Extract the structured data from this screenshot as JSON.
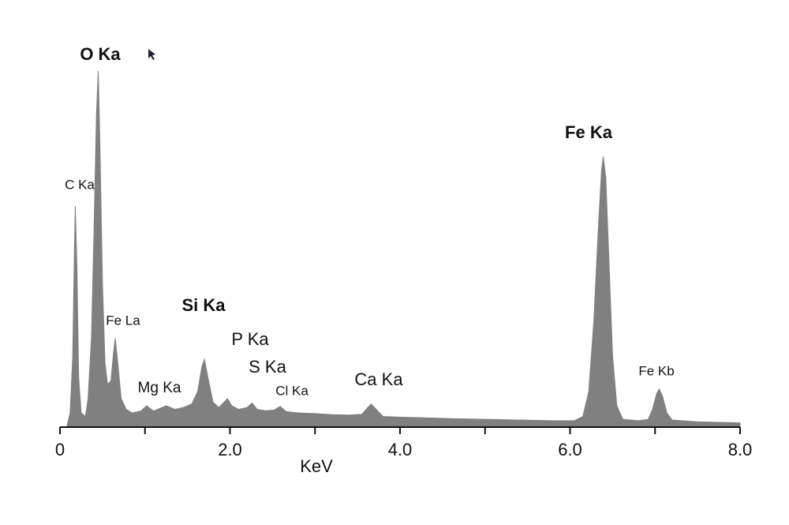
{
  "chart_data": {
    "type": "area",
    "x_label": "KeV",
    "color": "#808080",
    "xlim": [
      0,
      8
    ],
    "ylim": [
      0,
      100
    ],
    "xticks": [
      0,
      {
        "value": 2,
        "label": "2.0"
      },
      {
        "value": 4,
        "label": "4.0"
      },
      {
        "value": 6,
        "label": "6.0"
      },
      {
        "value": 8,
        "label": "8.0"
      }
    ],
    "xminor_ticks": [
      1,
      3,
      5,
      7
    ],
    "x": [
      0.08,
      0.12,
      0.15,
      0.17,
      0.18,
      0.2,
      0.22,
      0.25,
      0.3,
      0.33,
      0.37,
      0.4,
      0.43,
      0.45,
      0.47,
      0.5,
      0.53,
      0.56,
      0.6,
      0.63,
      0.65,
      0.68,
      0.72,
      0.78,
      0.85,
      0.95,
      1.02,
      1.1,
      1.2,
      1.25,
      1.35,
      1.45,
      1.55,
      1.62,
      1.67,
      1.7,
      1.74,
      1.8,
      1.87,
      1.93,
      1.97,
      2.02,
      2.1,
      2.2,
      2.26,
      2.32,
      2.42,
      2.52,
      2.59,
      2.66,
      2.8,
      3.0,
      3.2,
      3.4,
      3.55,
      3.62,
      3.66,
      3.72,
      3.8,
      4.0,
      4.3,
      4.6,
      5.0,
      5.4,
      5.8,
      6.05,
      6.15,
      6.22,
      6.28,
      6.33,
      6.37,
      6.39,
      6.42,
      6.46,
      6.5,
      6.55,
      6.62,
      6.8,
      6.92,
      6.97,
      7.02,
      7.05,
      7.09,
      7.14,
      7.2,
      7.5,
      8.0
    ],
    "values": [
      0,
      4,
      20,
      50,
      62,
      45,
      14,
      4,
      3,
      8,
      25,
      55,
      88,
      100,
      80,
      40,
      18,
      12,
      13,
      21,
      25,
      18,
      8,
      5,
      4,
      4.5,
      6,
      4.5,
      5.5,
      6,
      5,
      5.5,
      6.5,
      10,
      17,
      19,
      14,
      7,
      5.5,
      7,
      8,
      6,
      5,
      5.5,
      6.8,
      5,
      4.6,
      4.8,
      5.8,
      4.4,
      4,
      3.8,
      3.5,
      3.4,
      3.6,
      5.5,
      6.5,
      5,
      3,
      2.8,
      2.6,
      2.4,
      2.2,
      2,
      1.8,
      1.8,
      3,
      10,
      30,
      55,
      72,
      76,
      70,
      45,
      20,
      6,
      2.2,
      1.8,
      2.2,
      5,
      9.5,
      10.7,
      8.5,
      4,
      2,
      1.5,
      1.2
    ],
    "annotations": [
      "O Ka",
      "C Ka",
      "Fe La",
      "Mg Ka",
      "Si Ka",
      "P Ka",
      "S Ka",
      "Cl Ka",
      "Ca Ka",
      "Fe Ka",
      "Fe Kb"
    ]
  }
}
